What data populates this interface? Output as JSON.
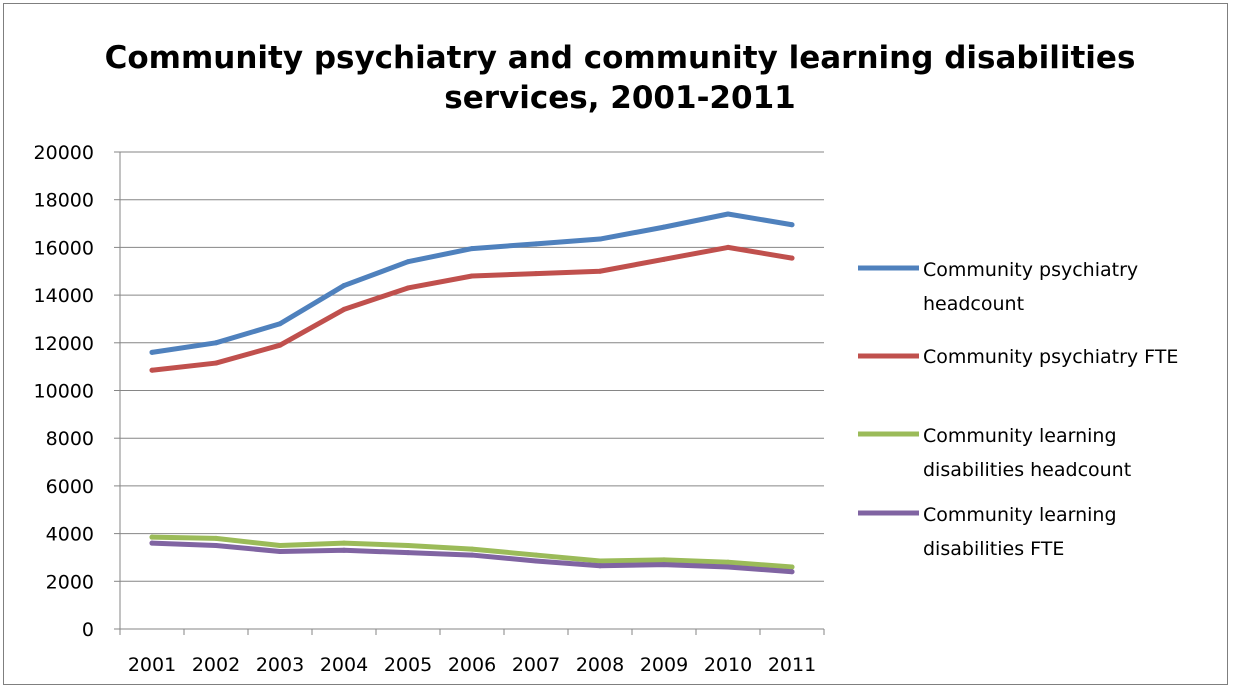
{
  "chart_data": {
    "type": "line",
    "title": "Community psychiatry and community learning disabilities services, 2001-2011",
    "title_lines": [
      "Community psychiatry and community learning disabilities",
      "services, 2001-2011"
    ],
    "xlabel": "",
    "ylabel": "",
    "ylim": [
      0,
      20000
    ],
    "y_ticks": [
      0,
      2000,
      4000,
      6000,
      8000,
      10000,
      12000,
      14000,
      16000,
      18000,
      20000
    ],
    "y_tick_labels": [
      "0",
      "2000",
      "4000",
      "6000",
      "8000",
      "10000",
      "12000",
      "14000",
      "16000",
      "18000",
      "20000"
    ],
    "grid": "horizontal major gridlines",
    "legend_position": "right",
    "categories": [
      "2001",
      "2002",
      "2003",
      "2004",
      "2005",
      "2006",
      "2007",
      "2008",
      "2009",
      "2010",
      "2011"
    ],
    "series": [
      {
        "name": "Community psychiatry headcount",
        "legend_lines": [
          "Community psychiatry",
          "headcount"
        ],
        "color": "#4f81bd",
        "values": [
          11600,
          12000,
          12800,
          14400,
          15400,
          15950,
          16150,
          16350,
          16850,
          17400,
          16950
        ]
      },
      {
        "name": "Community psychiatry FTE",
        "legend_lines": [
          "Community psychiatry FTE"
        ],
        "color": "#c0504d",
        "values": [
          10850,
          11150,
          11900,
          13400,
          14300,
          14800,
          14900,
          15000,
          15500,
          16000,
          15550
        ]
      },
      {
        "name": "Community learning disabilities headcount",
        "legend_lines": [
          "Community learning",
          "disabilities headcount"
        ],
        "color": "#9bbb59",
        "values": [
          3850,
          3800,
          3500,
          3600,
          3500,
          3350,
          3100,
          2850,
          2900,
          2800,
          2600
        ]
      },
      {
        "name": "Community learning disabilities FTE",
        "legend_lines": [
          "Community learning",
          "disabilities FTE"
        ],
        "color": "#8064a2",
        "values": [
          3600,
          3500,
          3250,
          3300,
          3200,
          3100,
          2850,
          2650,
          2700,
          2600,
          2400
        ]
      }
    ]
  }
}
